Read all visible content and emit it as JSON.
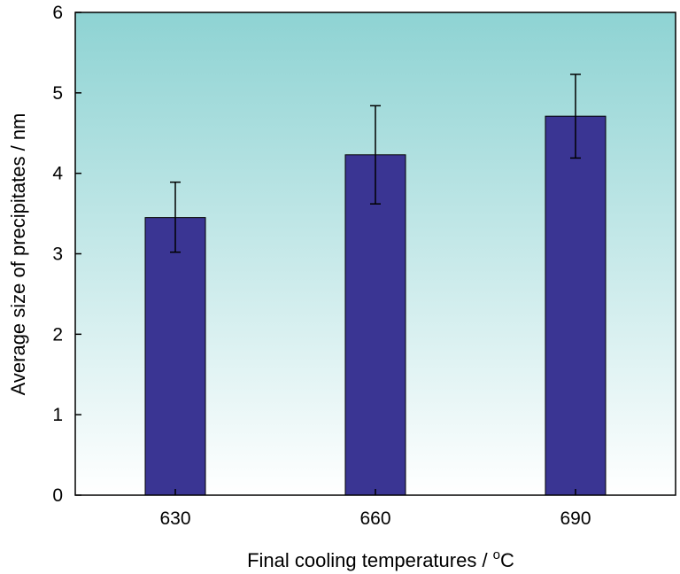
{
  "chart_data": {
    "type": "bar",
    "title": "",
    "categories": [
      "630",
      "660",
      "690"
    ],
    "values": [
      3.45,
      4.23,
      4.71
    ],
    "error": [
      {
        "low": 3.02,
        "high": 3.89
      },
      {
        "low": 3.62,
        "high": 4.84
      },
      {
        "low": 4.19,
        "high": 5.23
      }
    ],
    "ylim": [
      0,
      6
    ],
    "yticks": [
      "0",
      "1",
      "2",
      "3",
      "4",
      "5",
      "6"
    ],
    "xlabel": "Final cooling temperatures / ",
    "xlabel_unit_sup": "o",
    "xlabel_unit": "C",
    "ylabel": "Average size of precipitates / nm",
    "grid": false,
    "colors": {
      "bar": "#3a3593",
      "bg_top": "#8ed3d3",
      "bg_bottom": "#ffffff",
      "axis": "#000000"
    }
  }
}
